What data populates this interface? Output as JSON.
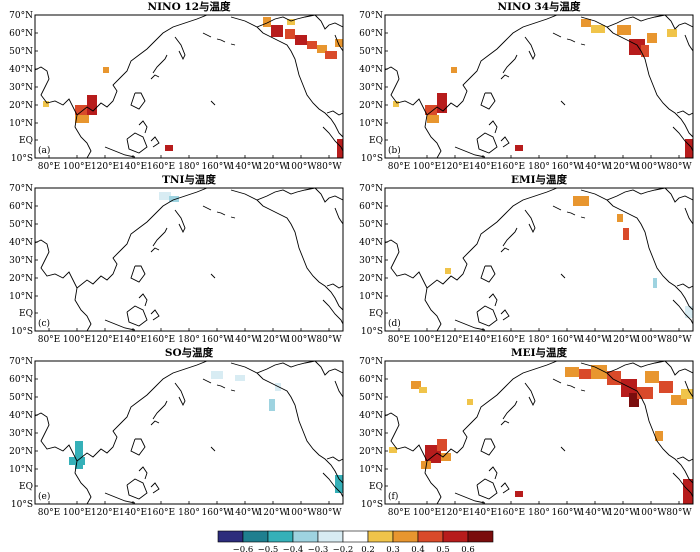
{
  "panels": [
    {
      "id": "a",
      "title": "NINO 12与温度",
      "label": "(a)"
    },
    {
      "id": "b",
      "title": "NINO 34与温度",
      "label": "(b)"
    },
    {
      "id": "c",
      "title": "TNI与温度",
      "label": "(c)"
    },
    {
      "id": "d",
      "title": "EMI与温度",
      "label": "(d)"
    },
    {
      "id": "e",
      "title": "SO与温度",
      "label": "(e)"
    },
    {
      "id": "f",
      "title": "MEI与温度",
      "label": "(f)"
    }
  ],
  "lat_ticks": [
    "70°N",
    "60°N",
    "50°N",
    "40°N",
    "30°N",
    "20°N",
    "10°N",
    "EQ",
    "10°S"
  ],
  "lon_ticks": [
    "80°E",
    "100°E",
    "120°E",
    "140°E",
    "160°E",
    "180°",
    "160°W",
    "140°W",
    "120°W",
    "100°W",
    "80°W"
  ],
  "colorbar": {
    "labels": [
      "−0.6",
      "−0.5",
      "−0.4",
      "−0.3",
      "−0.2",
      "0.2",
      "0.3",
      "0.4",
      "0.5",
      "0.6"
    ],
    "colors": [
      "#2c2c7c",
      "#1f7f8f",
      "#35b0b8",
      "#9ed3e0",
      "#d8ecf3",
      "#ffffff",
      "#f0c44a",
      "#e8962f",
      "#d94a2a",
      "#b71c1c",
      "#7a0d0d"
    ]
  }
}
